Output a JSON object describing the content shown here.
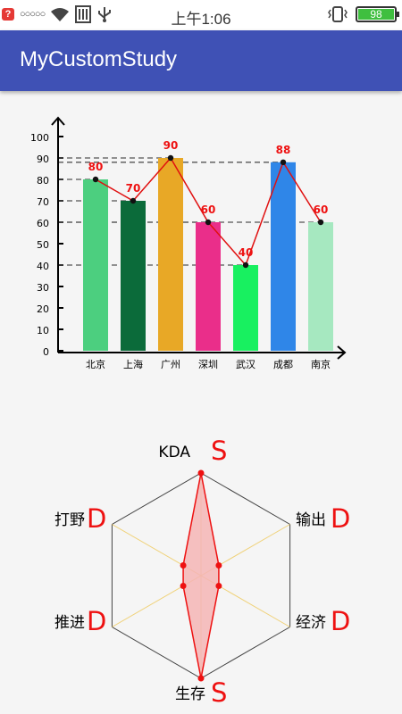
{
  "status_bar": {
    "notification_badge": "?",
    "signal_dots": "○○○○○",
    "time": "上午1:06",
    "battery_level": "98"
  },
  "app_bar": {
    "title": "MyCustomStudy",
    "color": "#3f51b5"
  },
  "chart_data": [
    {
      "type": "bar",
      "categories": [
        "北京",
        "上海",
        "广州",
        "深圳",
        "武汉",
        "成都",
        "南京"
      ],
      "values": [
        80,
        70,
        90,
        60,
        40,
        88,
        60
      ],
      "value_labels": [
        "80",
        "70",
        "90",
        "60",
        "40",
        "88",
        "60"
      ],
      "bar_colors": [
        "#4ccf7f",
        "#0b6b3a",
        "#e8a826",
        "#ea2e8a",
        "#18f060",
        "#2f86e8",
        "#a6e8c0"
      ],
      "line_color": "#e01010",
      "ylim": [
        0,
        100
      ],
      "y_ticks": [
        "0",
        "10",
        "20",
        "30",
        "40",
        "50",
        "60",
        "70",
        "80",
        "90",
        "100"
      ],
      "overlay": "line",
      "grid": false
    },
    {
      "type": "radar",
      "axes": [
        {
          "name": "KDA",
          "grade": "S",
          "value": 1.0
        },
        {
          "name": "输出",
          "grade": "D",
          "value": 0.2
        },
        {
          "name": "经济",
          "grade": "D",
          "value": 0.2
        },
        {
          "name": "生存",
          "grade": "S",
          "value": 1.0
        },
        {
          "name": "推进",
          "grade": "D",
          "value": 0.2
        },
        {
          "name": "打野",
          "grade": "D",
          "value": 0.2
        }
      ],
      "grade_color": "#ee1111",
      "fill_color": "#f5b5b5",
      "outline_color": "#444444",
      "spoke_color": "#f0d27a"
    }
  ]
}
